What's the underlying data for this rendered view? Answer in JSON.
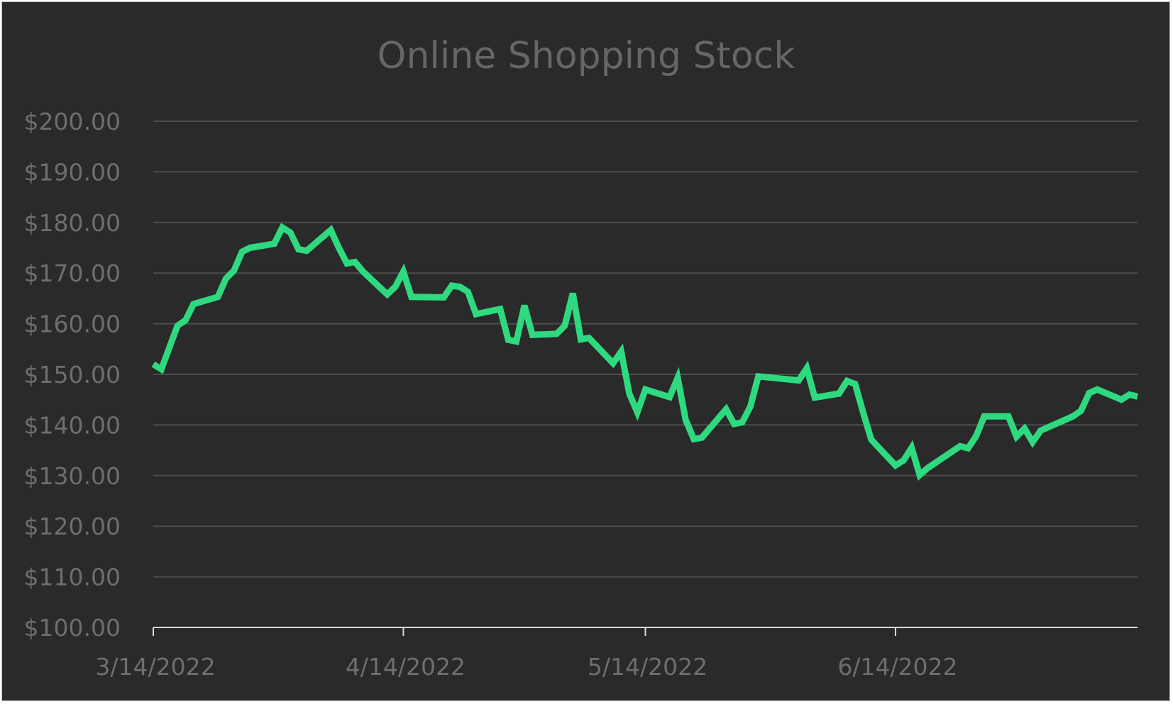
{
  "chart_data": {
    "type": "line",
    "title": "Online Shopping Stock",
    "xlabel": "",
    "ylabel": "",
    "ylim": [
      100,
      200
    ],
    "y_ticks": [
      100,
      110,
      120,
      130,
      140,
      150,
      160,
      170,
      180,
      190,
      200
    ],
    "y_tick_labels": [
      "$100.00",
      "$110.00",
      "$120.00",
      "$130.00",
      "$140.00",
      "$150.00",
      "$160.00",
      "$170.00",
      "$180.00",
      "$190.00",
      "$200.00"
    ],
    "x_range": [
      "2022-03-14",
      "2022-07-14"
    ],
    "x_ticks": [
      "2022-03-14",
      "2022-04-14",
      "2022-05-14",
      "2022-06-14"
    ],
    "x_tick_labels": [
      "3/14/2022",
      "4/14/2022",
      "5/14/2022",
      "6/14/2022"
    ],
    "grid": true,
    "colors": {
      "background": "#2a2a2a",
      "line": "#2fd980",
      "grid": "#4d4d4d",
      "axis": "#d9d9d9",
      "text": "#6e6e6e"
    },
    "series": [
      {
        "values": [
          [
            "2022-03-14",
            152.0
          ],
          [
            "2022-03-15",
            151.0
          ],
          [
            "2022-03-16",
            155.3
          ],
          [
            "2022-03-17",
            159.6
          ],
          [
            "2022-03-18",
            160.7
          ],
          [
            "2022-03-19",
            163.9
          ],
          [
            "2022-03-22",
            165.3
          ],
          [
            "2022-03-23",
            168.9
          ],
          [
            "2022-03-24",
            170.5
          ],
          [
            "2022-03-25",
            174.2
          ],
          [
            "2022-03-26",
            175.0
          ],
          [
            "2022-03-29",
            175.8
          ],
          [
            "2022-03-30",
            179.0
          ],
          [
            "2022-03-31",
            178.0
          ],
          [
            "2022-04-01",
            174.7
          ],
          [
            "2022-04-02",
            174.4
          ],
          [
            "2022-04-05",
            178.5
          ],
          [
            "2022-04-06",
            175.0
          ],
          [
            "2022-04-07",
            171.9
          ],
          [
            "2022-04-08",
            172.2
          ],
          [
            "2022-04-09",
            170.3
          ],
          [
            "2022-04-12",
            165.8
          ],
          [
            "2022-04-13",
            167.3
          ],
          [
            "2022-04-14",
            170.3
          ],
          [
            "2022-04-15",
            165.3
          ],
          [
            "2022-04-19",
            165.2
          ],
          [
            "2022-04-20",
            167.5
          ],
          [
            "2022-04-21",
            167.3
          ],
          [
            "2022-04-22",
            166.3
          ],
          [
            "2022-04-23",
            161.9
          ],
          [
            "2022-04-26",
            162.9
          ],
          [
            "2022-04-27",
            156.8
          ],
          [
            "2022-04-28",
            156.5
          ],
          [
            "2022-04-29",
            163.6
          ],
          [
            "2022-04-30",
            157.8
          ],
          [
            "2022-05-03",
            158.0
          ],
          [
            "2022-05-04",
            159.6
          ],
          [
            "2022-05-05",
            166.0
          ],
          [
            "2022-05-06",
            156.9
          ],
          [
            "2022-05-07",
            157.2
          ],
          [
            "2022-05-10",
            152.2
          ],
          [
            "2022-05-11",
            154.5
          ],
          [
            "2022-05-12",
            146.2
          ],
          [
            "2022-05-13",
            142.5
          ],
          [
            "2022-05-14",
            147.0
          ],
          [
            "2022-05-17",
            145.5
          ],
          [
            "2022-05-18",
            149.3
          ],
          [
            "2022-05-19",
            141.0
          ],
          [
            "2022-05-20",
            137.2
          ],
          [
            "2022-05-21",
            137.5
          ],
          [
            "2022-05-24",
            143.1
          ],
          [
            "2022-05-25",
            140.2
          ],
          [
            "2022-05-26",
            140.5
          ],
          [
            "2022-05-27",
            143.6
          ],
          [
            "2022-05-28",
            149.6
          ],
          [
            "2022-06-02",
            148.8
          ],
          [
            "2022-06-03",
            151.2
          ],
          [
            "2022-06-04",
            145.4
          ],
          [
            "2022-06-07",
            146.2
          ],
          [
            "2022-06-08",
            148.7
          ],
          [
            "2022-06-09",
            148.1
          ],
          [
            "2022-06-10",
            142.4
          ],
          [
            "2022-06-11",
            137.1
          ],
          [
            "2022-06-14",
            132.0
          ],
          [
            "2022-06-15",
            133.0
          ],
          [
            "2022-06-16",
            135.5
          ],
          [
            "2022-06-17",
            130.1
          ],
          [
            "2022-06-18",
            131.5
          ],
          [
            "2022-06-22",
            135.8
          ],
          [
            "2022-06-23",
            135.4
          ],
          [
            "2022-06-24",
            137.8
          ],
          [
            "2022-06-25",
            141.7
          ],
          [
            "2022-06-28",
            141.7
          ],
          [
            "2022-06-29",
            137.7
          ],
          [
            "2022-06-30",
            139.3
          ],
          [
            "2022-07-01",
            136.6
          ],
          [
            "2022-07-02",
            138.9
          ],
          [
            "2022-07-06",
            141.7
          ],
          [
            "2022-07-07",
            142.8
          ],
          [
            "2022-07-08",
            146.3
          ],
          [
            "2022-07-09",
            147.0
          ],
          [
            "2022-07-12",
            145.0
          ],
          [
            "2022-07-13",
            146.0
          ],
          [
            "2022-07-14",
            145.6
          ]
        ]
      }
    ]
  }
}
